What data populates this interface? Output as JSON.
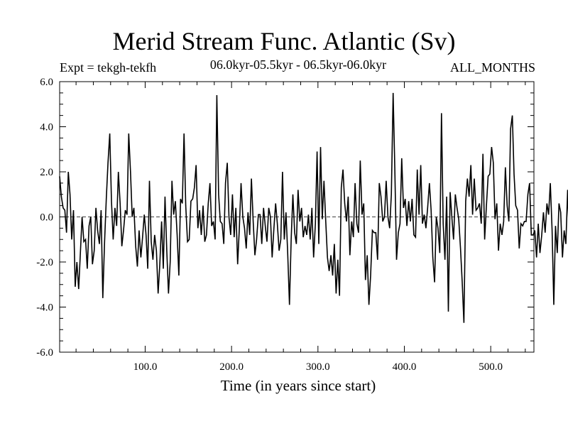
{
  "chart_data": {
    "type": "line",
    "title": "Merid Stream Func. Atlantic (Sv)",
    "experiment_label": "Expt = tekgh-tekfh",
    "subtitle": "06.0kyr-05.5kyr - 06.5kyr-06.0kyr",
    "months_label": "ALL_MONTHS",
    "xlabel": "Time (in years since start)",
    "ylabel": "",
    "xlim": [
      1,
      550
    ],
    "ylim": [
      -6,
      6
    ],
    "xticks": [
      100,
      200,
      300,
      400,
      500
    ],
    "xtick_labels": [
      "100.0",
      "200.0",
      "300.0",
      "400.0",
      "500.0"
    ],
    "yticks": [
      6,
      4,
      2,
      0,
      -2,
      -4,
      -6
    ],
    "ytick_labels": [
      "6.0",
      "4.0",
      "2.0",
      "0.0",
      "-2.0",
      "-4.0",
      "-6.0"
    ],
    "reference_line": 0,
    "series": [
      {
        "name": "Merid Stream Func. Atlantic",
        "x_start": 1,
        "x_step": 2,
        "values": [
          1.8,
          0.9,
          0.4,
          0.3,
          -0.7,
          2.0,
          1.0,
          -1.0,
          0.3,
          -3.1,
          -2.0,
          -3.2,
          -1.6,
          0.0,
          -1.1,
          -1.0,
          -2.3,
          -0.4,
          0.0,
          -2.1,
          -1.5,
          0.4,
          -0.6,
          -1.2,
          0.3,
          -3.6,
          -1.1,
          0.8,
          2.4,
          3.7,
          0.7,
          -1.0,
          0.4,
          -0.4,
          2.0,
          0.6,
          -1.3,
          -0.6,
          0.3,
          0.1,
          3.7,
          2.0,
          0.0,
          0.4,
          -1.3,
          -2.2,
          -0.6,
          -1.8,
          -0.9,
          0.1,
          -0.8,
          -2.3,
          1.6,
          -1.1,
          -1.9,
          -0.8,
          -1.5,
          -3.4,
          -2.1,
          -0.2,
          -2.3,
          0.9,
          -1.5,
          -3.4,
          -2.0,
          1.6,
          0.1,
          0.7,
          -0.8,
          -2.6,
          0.8,
          0.6,
          3.7,
          0.5,
          -1.1,
          -1.0,
          0.7,
          0.8,
          1.3,
          2.3,
          -0.5,
          0.3,
          -0.8,
          0.5,
          -1.1,
          -0.8,
          0.6,
          1.5,
          -0.4,
          -0.2,
          -1.0,
          5.4,
          1.0,
          -0.2,
          -0.3,
          -1.2,
          1.5,
          2.4,
          0.0,
          -0.8,
          1.0,
          -0.9,
          0.4,
          -2.1,
          -0.5,
          1.5,
          0.0,
          -0.5,
          -1.4,
          0.2,
          -0.8,
          1.7,
          -0.2,
          -1.7,
          -1.0,
          0.1,
          0.1,
          -1.2,
          0.4,
          -0.4,
          -1.1,
          0.4,
          0.0,
          -1.8,
          -0.5,
          0.6,
          -0.3,
          -1.5,
          -1.0,
          2.0,
          -1.0,
          0.2,
          -1.6,
          -3.9,
          -1.0,
          1.0,
          -0.7,
          -1.2,
          1.2,
          -0.2,
          0.4,
          -0.9,
          -0.4,
          -0.8,
          0.1,
          -1.0,
          0.4,
          -1.8,
          -0.3,
          2.9,
          -1.2,
          3.1,
          -0.1,
          1.6,
          -0.2,
          -1.8,
          -2.4,
          -1.7,
          -2.6,
          -1.2,
          -3.4,
          -1.9,
          -3.5,
          1.3,
          2.1,
          0.6,
          -0.2,
          0.9,
          -1.7,
          -0.2,
          -0.9,
          1.5,
          -0.3,
          -0.7,
          2.5,
          0.1,
          0.6,
          -2.8,
          -1.7,
          -3.9,
          -2.6,
          -0.6,
          -0.7,
          -0.7,
          -1.9,
          1.5,
          0.9,
          -0.2,
          0.0,
          1.6,
          0.0,
          -0.5,
          1.0,
          5.5,
          2.1,
          -1.9,
          -0.7,
          -0.3,
          2.6,
          0.4,
          0.8,
          -0.4,
          0.7,
          -0.2,
          0.8,
          -0.8,
          -0.9,
          2.1,
          0.1,
          2.3,
          -0.3,
          0.1,
          -0.5,
          0.4,
          1.5,
          0.3,
          -1.8,
          -2.9,
          0.0,
          -0.5,
          -1.6,
          4.6,
          -0.3,
          -1.9,
          0.9,
          -4.2,
          1.1,
          0.0,
          -1.0,
          1.0,
          0.4,
          -0.1,
          -1.4,
          -2.9,
          -4.7,
          0.7,
          1.7,
          0.9,
          2.3,
          0.1,
          1.7,
          0.3,
          0.4,
          0.6,
          -0.3,
          2.8,
          -1.0,
          0.5,
          1.8,
          1.9,
          3.1,
          2.4,
          -0.1,
          0.6,
          -1.5,
          -0.3,
          -0.8,
          -0.2,
          2.2,
          0.5,
          -0.2,
          3.9,
          4.5,
          1.9,
          0.5,
          0.3,
          -1.4,
          -0.3,
          -0.4,
          -0.2,
          -0.2,
          1.0,
          1.5,
          -0.8,
          -0.8,
          -0.6,
          -1.8,
          -0.3,
          -1.6,
          -0.8,
          0.2,
          -0.7,
          0.6,
          0.1,
          1.5,
          -0.6,
          -3.9,
          -0.4,
          -1.6,
          0.6,
          0.2,
          -1.8,
          -0.6,
          -1.2,
          1.2,
          -1.1,
          -0.8,
          -0.6,
          -4.2,
          -0.6,
          0.1,
          -1.2,
          -0.6,
          0.7,
          0.4,
          1.5,
          0.1,
          -0.4,
          0.1,
          0.4,
          0.6,
          -1.6,
          0.7,
          0.0,
          -0.4,
          -2.5,
          0.9,
          1.8,
          0.4,
          -0.1,
          2.8,
          0.2,
          0.8,
          -1.3,
          -1.3,
          0.7,
          2.9,
          2.0,
          -0.4,
          0.4,
          1.1,
          2.1,
          1.7,
          1.0,
          -1.3,
          0.5,
          2.1,
          -0.3,
          0.3,
          0.7,
          -0.8,
          0.5,
          0.8,
          -1.0,
          -0.8,
          -0.5,
          1.1,
          -0.8,
          -0.3,
          1.4,
          0.7,
          1.2,
          -0.8,
          0.6,
          -2.7,
          -0.5,
          1.5,
          0.8,
          -2.4,
          -2.5,
          1.8,
          -1.1,
          -2.4,
          -1.1
        ]
      }
    ]
  }
}
